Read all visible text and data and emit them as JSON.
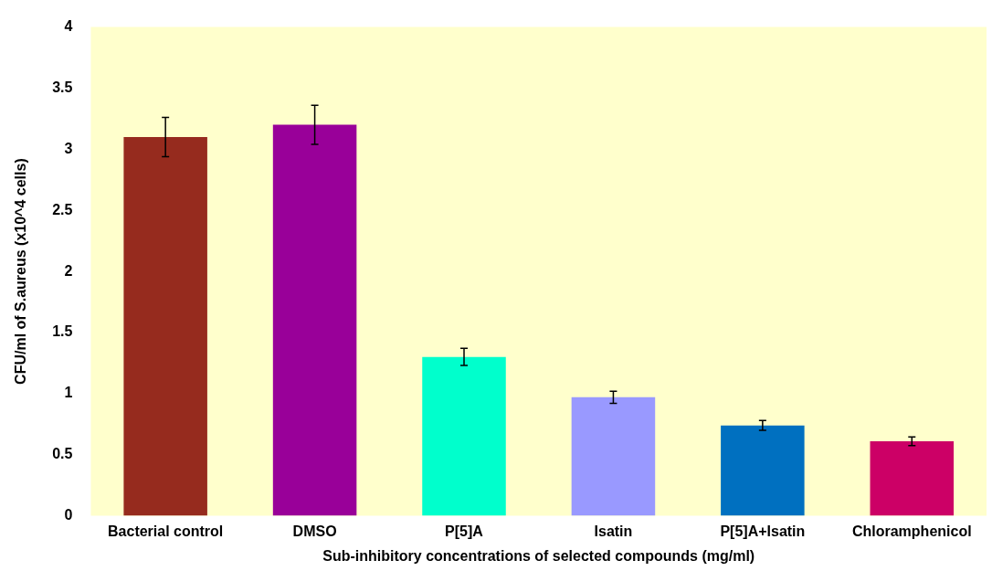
{
  "chart_data": {
    "type": "bar",
    "xlabel": "Sub-inhibitory concentrations of selected compounds (mg/ml)",
    "ylabel": "CFU/ml of S.aureus (x10^4 cells)",
    "categories": [
      "Bacterial control",
      "DMSO",
      "P[5]A",
      "Isatin",
      "P[5]A+Isatin",
      "Chloramphenicol"
    ],
    "values": [
      3.1,
      3.2,
      1.3,
      0.97,
      0.74,
      0.61
    ],
    "errors": [
      0.16,
      0.16,
      0.07,
      0.05,
      0.04,
      0.035
    ],
    "colors": [
      "#962b1e",
      "#990099",
      "#00ffcc",
      "#9999ff",
      "#0070c0",
      "#cc0066"
    ],
    "ylim": [
      0,
      4
    ],
    "yticks": [
      0,
      0.5,
      1,
      1.5,
      2,
      2.5,
      3,
      3.5,
      4
    ],
    "grid": false,
    "legend": false
  }
}
